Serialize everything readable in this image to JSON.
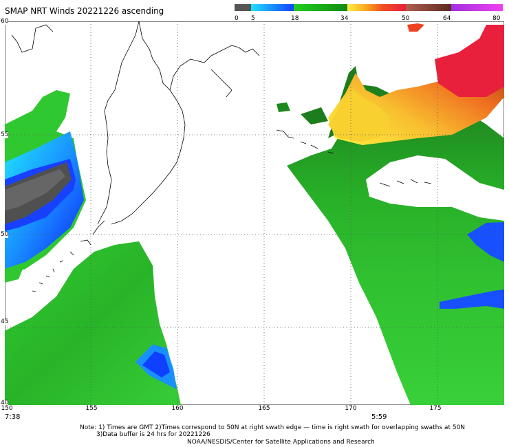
{
  "title": "SMAP NRT Winds 20221226 ascending",
  "colorbar": {
    "tick_labels": [
      "0",
      "5",
      "18",
      "34",
      "50",
      "64",
      "80"
    ],
    "tick_values": [
      0,
      5,
      18,
      34,
      50,
      64,
      80
    ],
    "colors": [
      {
        "from": 0,
        "to": 5,
        "color": "#5a5a5a"
      },
      {
        "from": 5,
        "to": 18,
        "color": "#1a8cff"
      },
      {
        "from": 18,
        "to": 34,
        "color": "#10c010"
      },
      {
        "from": 34,
        "to": 50,
        "color": "#f0d020"
      },
      {
        "from": 50,
        "to": 64,
        "color": "#e03030"
      },
      {
        "from": 64,
        "to": 80,
        "color": "#c040d0"
      }
    ]
  },
  "axes": {
    "x_ticks": [
      "150",
      "155",
      "160",
      "165",
      "170",
      "175"
    ],
    "y_ticks": [
      "60",
      "55",
      "50",
      "45",
      "40"
    ]
  },
  "times": {
    "left": "7:38",
    "right": "5:59"
  },
  "notes": [
    "Note: 1) Times are GMT 2)Times correspond to 50N at right swath edge — time is right swath for overlapping swaths at 50N",
    "3)Data buffer is 24 hrs for 20221226",
    "NOAA/NESDIS/Center for Satellite Applications and Research"
  ],
  "colors": {
    "land_outline": "#000000",
    "grid": "#555555",
    "no_data": "#ffffff",
    "dark_green": "#1f8a1f",
    "green": "#2ec02e",
    "blue": "#1060ff",
    "cyan": "#18c8ff",
    "gray": "#555555",
    "yellow": "#f5c830",
    "orange": "#f08020",
    "red": "#e8203c"
  }
}
